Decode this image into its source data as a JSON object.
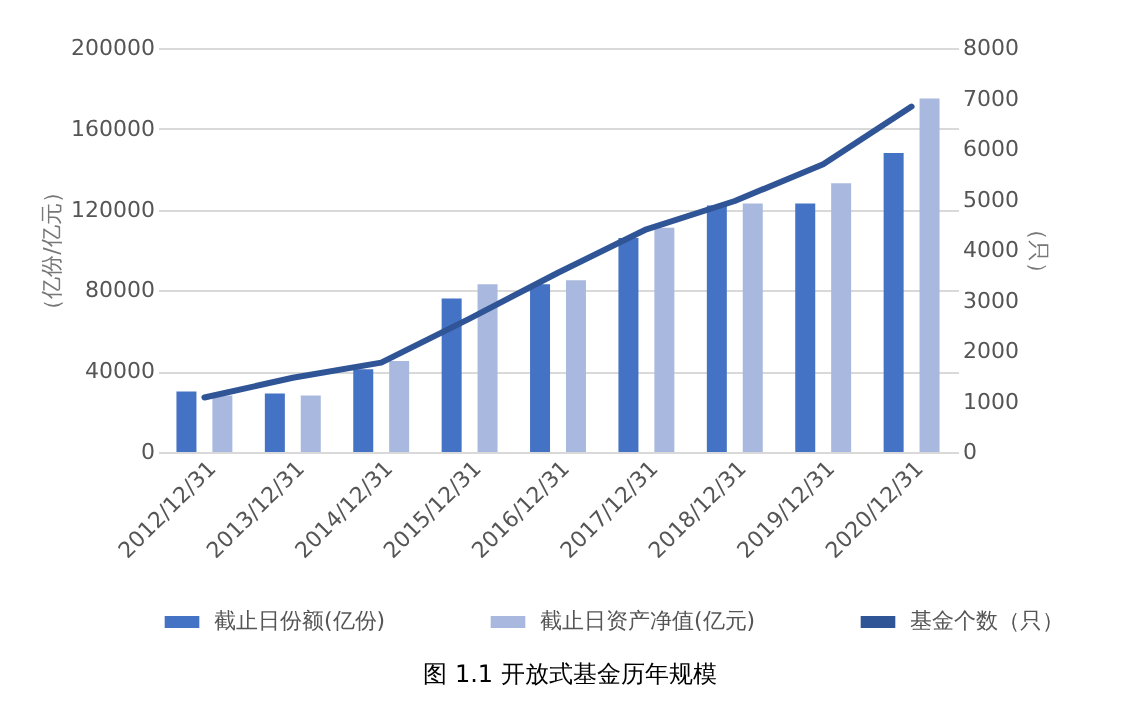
{
  "chart_data": {
    "type": "bar",
    "categories": [
      "2012/12/31",
      "2013/12/31",
      "2014/12/31",
      "2015/12/31",
      "2016/12/31",
      "2017/12/31",
      "2018/12/31",
      "2019/12/31",
      "2020/12/31"
    ],
    "series": [
      {
        "name": "截止日份额(亿份)",
        "color": "#4472c4",
        "values": [
          30000,
          29000,
          41000,
          76000,
          83000,
          106000,
          122000,
          123000,
          148000
        ]
      },
      {
        "name": "截止日资产净值(亿元)",
        "color": "#a9b8de",
        "values": [
          28000,
          28000,
          45000,
          83000,
          85000,
          111000,
          123000,
          133000,
          175000
        ]
      },
      {
        "name": "基金个数（只）",
        "color": "#2f5597",
        "type": "line",
        "axis": "y2",
        "values": [
          1080,
          1470,
          1770,
          2640,
          3550,
          4410,
          4970,
          5700,
          6840
        ]
      }
    ],
    "ylabel": "（亿份/亿元）",
    "y2label": "（只）",
    "ylim": [
      0,
      200000
    ],
    "yticks": [
      0,
      40000,
      80000,
      120000,
      160000,
      200000
    ],
    "y2lim": [
      0,
      8000
    ],
    "y2ticks": [
      0,
      1000,
      2000,
      3000,
      4000,
      5000,
      6000,
      7000,
      8000
    ],
    "grid": "y",
    "legend": "bottom",
    "annotations": [
      "图 1.1  开放式基金历年规模"
    ]
  }
}
